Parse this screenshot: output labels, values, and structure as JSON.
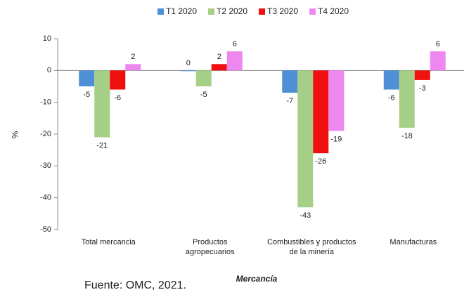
{
  "chart_data": {
    "type": "bar",
    "categories": [
      "Total mercancia",
      "Productos\nagropecuarios",
      "Combustibles y productos\nde la minería",
      "Manufacturas"
    ],
    "series": [
      {
        "name": "T1 2020",
        "color": "#4f8fd6",
        "values": [
          -5,
          0,
          -7,
          -6
        ]
      },
      {
        "name": "T2 2020",
        "color": "#a6cf88",
        "values": [
          -21,
          -5,
          -43,
          -18
        ]
      },
      {
        "name": "T3 2020",
        "color": "#f01010",
        "values": [
          -6,
          2,
          -26,
          -3
        ]
      },
      {
        "name": "T4 2020",
        "color": "#ee88ee",
        "values": [
          2,
          6,
          -19,
          6
        ]
      }
    ],
    "ylim": [
      -50,
      10
    ],
    "yticks": [
      -50,
      -40,
      -30,
      -20,
      -10,
      0,
      10
    ],
    "y_label": "%",
    "x_label": "Mercancía",
    "legend": "top",
    "grid": false
  },
  "source": "Fuente: OMC, 2021."
}
